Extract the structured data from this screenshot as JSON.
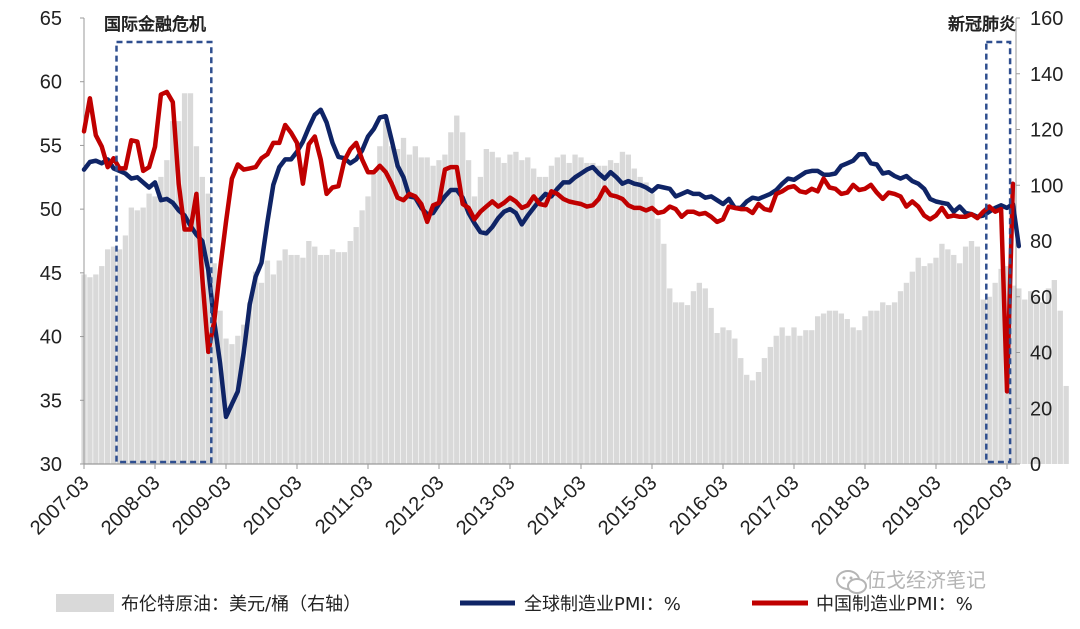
{
  "chart_data": {
    "type": "bar+line",
    "x_ticks": [
      "2007-03",
      "2008-03",
      "2009-03",
      "2010-03",
      "2011-03",
      "2012-03",
      "2013-03",
      "2014-03",
      "2015-03",
      "2016-03",
      "2017-03",
      "2018-03",
      "2019-03",
      "2020-03"
    ],
    "ylim_left": [
      30,
      65
    ],
    "yticks_left": [
      "30",
      "35",
      "40",
      "45",
      "50",
      "55",
      "60",
      "65"
    ],
    "ylim_right": [
      0,
      160
    ],
    "yticks_right": [
      "0",
      "20",
      "40",
      "60",
      "80",
      "100",
      "120",
      "140",
      "160"
    ],
    "annotations": [
      "国际金融危机",
      "新冠肺炎"
    ],
    "highlight_periods": [
      [
        "2007-09",
        "2008-12"
      ],
      [
        "2019-12",
        "2020-03"
      ]
    ],
    "legend": {
      "brent": "布伦特原油：美元/桶（右轴）",
      "global_pmi": "全球制造业PMI：%",
      "china_pmi": "中国制造业PMI：%"
    },
    "colors": {
      "brent": "#d9d9d9",
      "global_pmi": "#0f2466",
      "china_pmi": "#c00000",
      "box": "#2f4f8f"
    },
    "series": [
      {
        "name": "布伦特原油：美元/桶（右轴）",
        "axis": "right",
        "kind": "bar",
        "start": "2007-03",
        "values": [
          68,
          67,
          68,
          71,
          77,
          78,
          77,
          82,
          92,
          91,
          92,
          97,
          96,
          103,
          109,
          123,
          123,
          133,
          133,
          114,
          103,
          97,
          72,
          55,
          45,
          43,
          46,
          50,
          58,
          69,
          65,
          73,
          68,
          73,
          77,
          75,
          75,
          74,
          80,
          78,
          75,
          75,
          77,
          76,
          76,
          80,
          85,
          91,
          96,
          104,
          114,
          123,
          114,
          113,
          117,
          111,
          114,
          110,
          110,
          107,
          109,
          111,
          119,
          125,
          119,
          109,
          96,
          103,
          113,
          112,
          110,
          108,
          111,
          112,
          109,
          110,
          106,
          103,
          103,
          107,
          110,
          111,
          108,
          111,
          110,
          108,
          108,
          107,
          107,
          109,
          108,
          112,
          111,
          106,
          103,
          101,
          97,
          88,
          79,
          63,
          58,
          58,
          57,
          62,
          65,
          63,
          56,
          47,
          49,
          48,
          45,
          38,
          32,
          30,
          33,
          38,
          42,
          46,
          49,
          46,
          49,
          46,
          48,
          48,
          53,
          54,
          55,
          55,
          54,
          52,
          49,
          48,
          53,
          55,
          55,
          58,
          57,
          58,
          62,
          65,
          69,
          74,
          71,
          72,
          74,
          79,
          77,
          75,
          72,
          78,
          80,
          78,
          59,
          60,
          65,
          70,
          71,
          64,
          63,
          59,
          62,
          60,
          58,
          63,
          66,
          55,
          28
        ]
      },
      {
        "name": "全球制造业PMI：%",
        "axis": "left",
        "kind": "line",
        "start": "2007-03",
        "values": [
          53.1,
          53.7,
          53.8,
          53.6,
          53.9,
          53.2,
          53.0,
          52.8,
          52.4,
          52.5,
          52.1,
          51.7,
          52.1,
          50.7,
          50.8,
          50.5,
          49.9,
          49.5,
          48.7,
          48.0,
          47.5,
          45.2,
          41.2,
          37.9,
          33.7,
          34.7,
          35.7,
          38.8,
          42.5,
          44.7,
          45.8,
          49.0,
          51.9,
          53.3,
          53.9,
          53.9,
          54.5,
          55.3,
          56.4,
          57.4,
          57.8,
          56.8,
          55.2,
          54.1,
          54.0,
          53.6,
          53.9,
          54.6,
          55.7,
          56.3,
          57.2,
          57.3,
          55.4,
          53.4,
          52.5,
          51.0,
          50.9,
          50.1,
          49.6,
          49.7,
          50.4,
          51.0,
          51.5,
          51.5,
          50.9,
          49.7,
          48.9,
          48.2,
          48.1,
          48.6,
          49.3,
          49.8,
          50.0,
          49.7,
          48.8,
          49.5,
          50.1,
          50.7,
          51.2,
          51.0,
          51.6,
          52.1,
          52.1,
          52.5,
          52.8,
          53.1,
          53.3,
          52.8,
          52.4,
          52.9,
          52.5,
          52.0,
          52.2,
          52.0,
          51.9,
          51.7,
          51.4,
          51.8,
          51.7,
          51.6,
          51.0,
          51.2,
          51.4,
          51.2,
          51.2,
          50.9,
          51.0,
          50.7,
          50.4,
          50.8,
          50.1,
          50.1,
          50.6,
          50.9,
          50.8,
          51.0,
          51.2,
          51.5,
          52.0,
          52.4,
          52.3,
          52.6,
          52.9,
          53.0,
          53.0,
          52.7,
          52.7,
          52.8,
          53.4,
          53.6,
          53.8,
          54.3,
          54.3,
          53.6,
          53.5,
          52.8,
          52.9,
          52.6,
          52.4,
          52.6,
          52.2,
          52.0,
          51.6,
          50.8,
          50.6,
          50.5,
          50.4,
          49.8,
          50.2,
          49.7,
          49.6,
          49.4,
          49.5,
          49.8,
          50.1,
          50.3,
          50.1,
          50.4,
          47.1
        ]
      },
      {
        "name": "中国制造业PMI：%",
        "axis": "left",
        "kind": "line",
        "start": "2007-03",
        "values": [
          56.1,
          58.7,
          55.8,
          54.9,
          53.3,
          54.0,
          53.2,
          53.2,
          55.4,
          55.3,
          53.0,
          53.3,
          54.9,
          59.0,
          59.2,
          58.4,
          52.0,
          48.4,
          48.4,
          51.2,
          44.6,
          38.8,
          41.2,
          45.3,
          49.0,
          52.4,
          53.5,
          53.1,
          53.2,
          53.3,
          54.0,
          54.3,
          55.2,
          55.2,
          56.6,
          56.0,
          55.2,
          52.0,
          55.1,
          55.7,
          53.9,
          51.2,
          51.7,
          51.8,
          53.8,
          54.7,
          55.2,
          53.9,
          52.9,
          52.9,
          53.4,
          52.9,
          52.0,
          50.9,
          50.7,
          51.2,
          51.0,
          50.4,
          49.0,
          50.3,
          50.5,
          53.1,
          53.3,
          53.3,
          50.4,
          50.1,
          49.2,
          49.8,
          50.2,
          50.6,
          50.2,
          50.5,
          50.9,
          50.6,
          50.1,
          50.3,
          51.0,
          50.4,
          50.3,
          51.4,
          51.2,
          50.8,
          50.6,
          50.5,
          50.4,
          50.2,
          50.3,
          50.8,
          51.7,
          51.1,
          51.0,
          50.8,
          50.3,
          50.1,
          50.1,
          49.9,
          50.1,
          49.7,
          49.8,
          50.2,
          50.0,
          49.4,
          49.8,
          49.8,
          49.6,
          49.7,
          49.4,
          49.0,
          49.2,
          50.2,
          50.1,
          50.0,
          50.0,
          49.7,
          50.4,
          50.0,
          49.9,
          51.2,
          51.4,
          51.7,
          51.8,
          51.4,
          51.3,
          51.6,
          51.4,
          52.4,
          51.7,
          51.6,
          51.2,
          51.3,
          51.9,
          51.5,
          51.6,
          51.9,
          51.3,
          50.8,
          51.3,
          51.2,
          51.0,
          50.2,
          50.6,
          50.2,
          49.5,
          49.2,
          49.5,
          50.1,
          49.4,
          49.5,
          49.4,
          49.4,
          49.6,
          49.3,
          49.8,
          50.2,
          49.8,
          50.0,
          35.7,
          52.0
        ]
      }
    ]
  },
  "watermark": "伍戈经济笔记"
}
